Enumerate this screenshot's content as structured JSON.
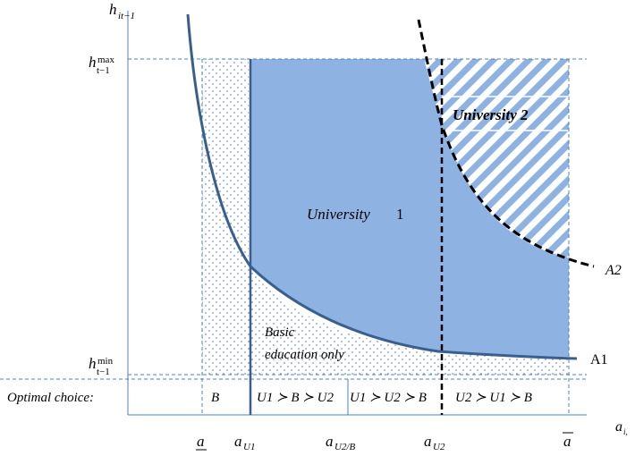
{
  "axes": {
    "y_label": "h",
    "y_label_sub": "it−1",
    "x_label": "a",
    "x_label_sub": "i,"
  },
  "y_ticks": {
    "hmax_base": "h",
    "hmax_sup": "max",
    "hmax_sub": "t−1",
    "hmin_base": "h",
    "hmin_sup": "min",
    "hmin_sub": "t−1"
  },
  "x_ticks": {
    "a_low": "a",
    "aU1_base": "a",
    "aU1_sub": "U1",
    "aU2B_base": "a",
    "aU2B_sub": "U2/B",
    "aU2_base": "a",
    "aU2_sub": "U2",
    "a_high": "a"
  },
  "regions": {
    "university1_italic": "University",
    "university1_num": "1",
    "university2": "University 2",
    "basic_line1": "Basic",
    "basic_line2": "education only"
  },
  "curves": {
    "a1": "A1",
    "a2": "A2"
  },
  "choice_row": {
    "label": "Optimal choice:",
    "cells": [
      "B",
      "U1 ≻ B ≻ U2",
      "U1 ≻ U2 ≻ B",
      "U2 ≻ U1 ≻ B"
    ]
  },
  "colors": {
    "university1_fill": "#8eb3e3",
    "curve": "#3a5f8f",
    "dashed_guides": "#4f81bd",
    "hatch": "#8eb3e3",
    "dots": "#6f94c4"
  }
}
